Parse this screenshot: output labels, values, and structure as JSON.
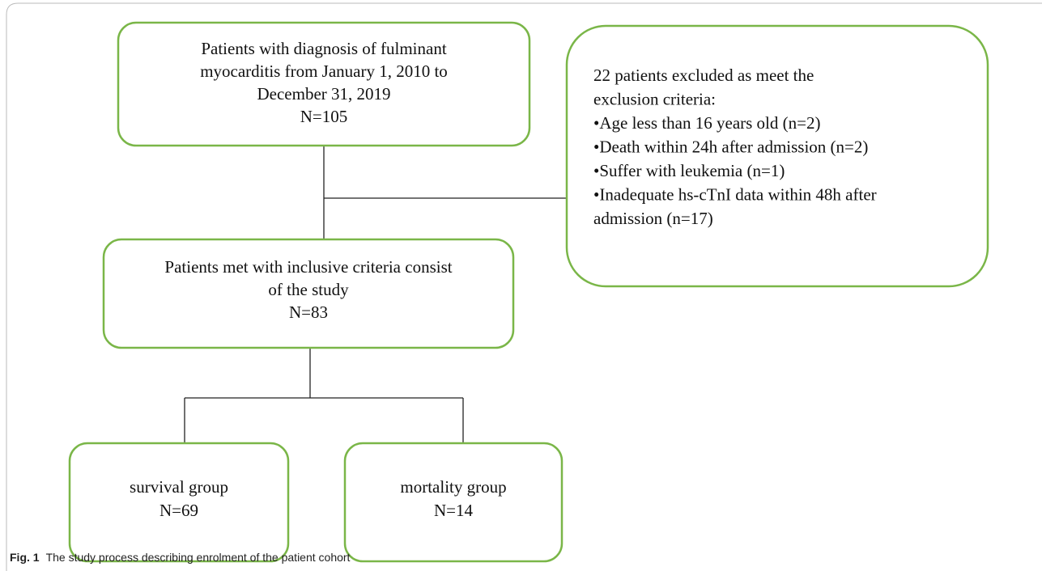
{
  "nodes": [
    {
      "lines": [
        "Patients with diagnosis of fulminant",
        "myocarditis from January 1, 2010 to",
        "December 31, 2019",
        "N=105"
      ]
    },
    {
      "lines": [
        "22 patients excluded as meet the",
        "exclusion criteria:",
        "•Age less than 16 years old (n=2)",
        "•Death within 24h after admission (n=2)",
        "•Suffer with leukemia (n=1)",
        "•Inadequate hs-cTnI data within 48h after",
        "admission (n=17)"
      ]
    },
    {
      "lines": [
        "Patients met with inclusive criteria consist",
        "of the study",
        "N=83"
      ]
    },
    {
      "lines": [
        "survival group",
        "N=69"
      ]
    },
    {
      "lines": [
        "mortality group",
        "N=14"
      ]
    }
  ],
  "caption": {
    "label": "Fig. 1",
    "text": "The study process describing enrolment of the patient cohort"
  }
}
